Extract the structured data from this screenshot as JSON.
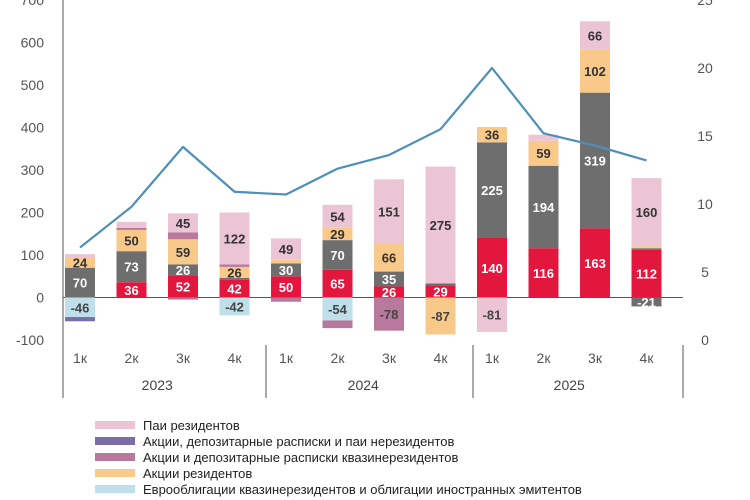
{
  "chart_data": {
    "type": "bar",
    "stacked": true,
    "categories": [
      "1к",
      "2к",
      "3к",
      "4к",
      "1к",
      "2к",
      "3к",
      "4к",
      "1к",
      "2к",
      "3к",
      "4к"
    ],
    "groups": [
      {
        "label": "2023",
        "start": 0,
        "end": 3
      },
      {
        "label": "2024",
        "start": 4,
        "end": 7
      },
      {
        "label": "2025",
        "start": 8,
        "end": 11
      }
    ],
    "left_axis": {
      "ticks": [
        "-100",
        "0",
        "100",
        "200",
        "300",
        "400",
        "500",
        "600",
        "700"
      ],
      "ylim": [
        -100,
        700
      ]
    },
    "right_axis": {
      "ticks": [
        "0",
        "5",
        "10",
        "15",
        "20",
        "25"
      ],
      "ylim": [
        0,
        25
      ]
    },
    "series": [
      {
        "key": "red",
        "color": "#e3173e",
        "labelColor": "#ffffff",
        "values": [
          0,
          36,
          52,
          42,
          50,
          65,
          26,
          29,
          140,
          116,
          163,
          112
        ],
        "labels": [
          "",
          "36",
          "52",
          "42",
          "50",
          "65",
          "26",
          "29",
          "140",
          "116",
          "163",
          "112"
        ]
      },
      {
        "key": "gray",
        "color": "#6e6e6e",
        "labelColor": "#ffffff",
        "values": [
          70,
          73,
          26,
          4,
          30,
          70,
          35,
          4,
          225,
          194,
          319,
          4
        ],
        "labels": [
          "70",
          "73",
          "26",
          "",
          "30",
          "70",
          "35",
          "",
          "225",
          "194",
          "319",
          ""
        ]
      },
      {
        "key": "orange",
        "color": "#f9c98a",
        "labelColor": "#333333",
        "values": [
          24,
          50,
          59,
          26,
          10,
          29,
          66,
          0,
          36,
          59,
          102,
          5
        ],
        "labels": [
          "24",
          "50",
          "59",
          "26",
          "",
          "29",
          "66",
          "",
          "36",
          "59",
          "102",
          ""
        ]
      },
      {
        "key": "mauve",
        "color": "#b9799c",
        "labelColor": "#333333",
        "values": [
          0,
          5,
          16,
          6,
          0,
          0,
          0,
          0,
          0,
          0,
          0,
          0
        ],
        "labels": [
          "",
          "",
          "",
          "",
          "",
          "",
          "",
          "",
          "",
          "",
          "",
          ""
        ]
      },
      {
        "key": "pink",
        "color": "#ecc5d5",
        "labelColor": "#333333",
        "values": [
          8,
          14,
          45,
          122,
          49,
          54,
          151,
          275,
          0,
          14,
          66,
          160
        ],
        "labels": [
          "",
          "",
          "45",
          "122",
          "49",
          "54",
          "151",
          "275",
          "",
          "",
          "66",
          "160"
        ]
      }
    ],
    "negatives": [
      {
        "index": 0,
        "segments": [
          {
            "color": "#bfe0ea",
            "value": -46
          },
          {
            "color": "#7b6ea6",
            "value": -10
          }
        ],
        "label": "-46",
        "labelColor": "#444444"
      },
      {
        "index": 2,
        "segments": [
          {
            "color": "#b9799c",
            "value": -5
          }
        ],
        "label": "",
        "labelColor": "#444444"
      },
      {
        "index": 3,
        "segments": [
          {
            "color": "#bfe0ea",
            "value": -42
          }
        ],
        "label": "-42",
        "labelColor": "#444444"
      },
      {
        "index": 4,
        "segments": [
          {
            "color": "#b9799c",
            "value": -10
          }
        ],
        "label": "",
        "labelColor": "#444444"
      },
      {
        "index": 5,
        "segments": [
          {
            "color": "#bfe0ea",
            "value": -54
          },
          {
            "color": "#b9799c",
            "value": -18
          }
        ],
        "label": "-54",
        "labelColor": "#444444"
      },
      {
        "index": 6,
        "segments": [
          {
            "color": "#b9799c",
            "value": -78
          }
        ],
        "label": "-78",
        "labelColor": "#444444"
      },
      {
        "index": 7,
        "segments": [
          {
            "color": "#f9c98a",
            "value": -87
          }
        ],
        "label": "-87",
        "labelColor": "#444444"
      },
      {
        "index": 8,
        "segments": [
          {
            "color": "#ecc5d5",
            "value": -81
          }
        ],
        "label": "-81",
        "labelColor": "#444444"
      },
      {
        "index": 11,
        "segments": [
          {
            "color": "#6e6e6e",
            "value": -21
          }
        ],
        "label": "-21",
        "labelColor": "#ffffff"
      }
    ],
    "line": {
      "color": "#4f90b8",
      "values": [
        6.8,
        9.8,
        14.2,
        10.9,
        10.7,
        12.6,
        13.6,
        15.5,
        20.0,
        15.2,
        14.3,
        13.2
      ]
    },
    "legend": [
      {
        "label": "Паи резидентов",
        "color": "#ecc5d5"
      },
      {
        "label": "Акции, депозитарные расписки и паи нерезидентов",
        "color": "#7b6ea6"
      },
      {
        "label": "Акции и депозитарные расписки квазинерезидентов",
        "color": "#b9799c"
      },
      {
        "label": "Акции резидентов",
        "color": "#f9c98a"
      },
      {
        "label": "Еврооблигации квазинерезидентов и облигации иностранных эмитентов",
        "color": "#bfe0ea"
      }
    ]
  }
}
